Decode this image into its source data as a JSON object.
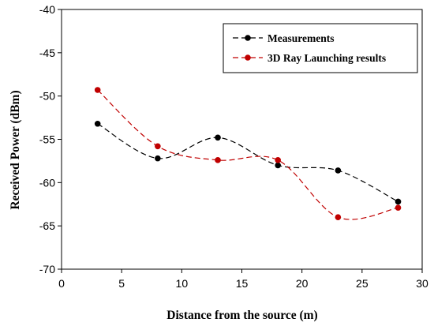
{
  "chart_data": {
    "type": "line",
    "title": "",
    "xlabel": "Distance from the source (m)",
    "ylabel": "Received Power (dBm)",
    "xlim": [
      0,
      30
    ],
    "ylim": [
      -70,
      -40
    ],
    "xticks": [
      0,
      5,
      10,
      15,
      20,
      25,
      30
    ],
    "yticks": [
      -70,
      -65,
      -60,
      -55,
      -50,
      -45,
      -40
    ],
    "grid": false,
    "legend_position": "top-right",
    "line_style": "dashed, smoothed",
    "series": [
      {
        "name": "Measurements",
        "color": "#000000",
        "marker_color": "#000000",
        "x": [
          3,
          8,
          13,
          18,
          23,
          28
        ],
        "y": [
          -53.2,
          -57.2,
          -54.8,
          -58.0,
          -58.6,
          -62.2
        ]
      },
      {
        "name": "3D Ray Launching results",
        "color": "#c00000",
        "marker_color": "#c00000",
        "x": [
          3,
          8,
          13,
          18,
          23,
          28
        ],
        "y": [
          -49.3,
          -55.8,
          -57.4,
          -57.4,
          -64.0,
          -62.9
        ]
      }
    ]
  }
}
